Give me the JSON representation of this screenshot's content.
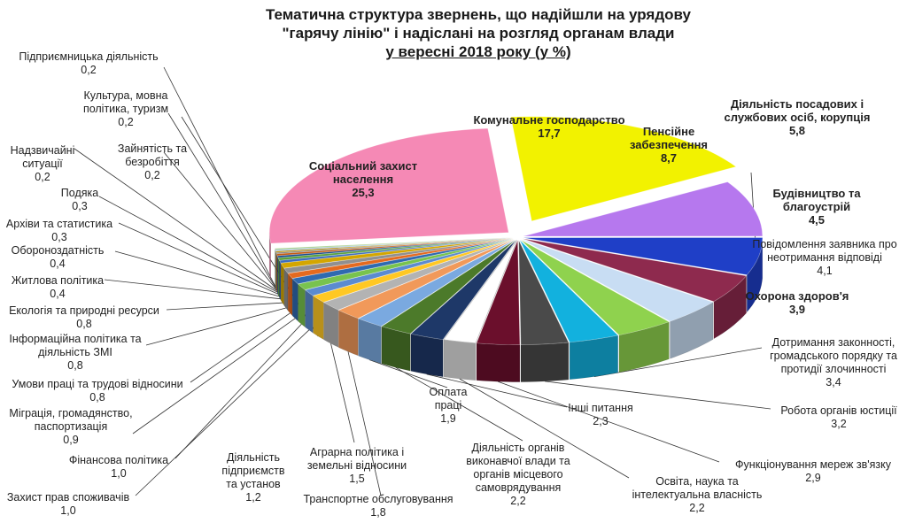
{
  "chart_data": {
    "type": "pie",
    "title_lines": [
      "Тематична структура звернень, що надійшли на урядову",
      "\"гарячу лінію\" і надіслані на розгляд органам влади",
      "у вересні 2018 року (у %)"
    ],
    "slices": [
      {
        "label": "Комунальне господарство",
        "value": 17.7,
        "color": "#f2f200"
      },
      {
        "label": "Пенсійне забезпечення",
        "value": 8.7,
        "color": "#b678ee"
      },
      {
        "label": "Діяльність посадових і службових осіб, корупція",
        "value": 5.8,
        "color": "#1f3fc7"
      },
      {
        "label": "Будівництво та благоустрій",
        "value": 4.5,
        "color": "#8e2a4e"
      },
      {
        "label": "Повідомлення заявника про неотримання відповіді",
        "value": 4.1,
        "color": "#c8ddf3"
      },
      {
        "label": "Охорона здоров'я",
        "value": 3.9,
        "color": "#8fd24e"
      },
      {
        "label": "Дотримання законності, громадського порядку та протидія злочинності",
        "value": 3.4,
        "color": "#12b1de"
      },
      {
        "label": "Робота органів юстиції",
        "value": 3.2,
        "color": "#4a4a4a"
      },
      {
        "label": "Функціонування мереж зв'язку",
        "value": 2.9,
        "color": "#6b0f2c"
      },
      {
        "label": "Освіта, наука та інтелектуальна власність",
        "value": 2.2,
        "color": "#ffffff"
      },
      {
        "label": "Інші питання",
        "value": 2.3,
        "color": "#1e3868"
      },
      {
        "label": "Діяльність органів виконавчої влади та органів місцевого самоврядування",
        "value": 2.2,
        "color": "#4c7a2a"
      },
      {
        "label": "Оплата праці",
        "value": 1.9,
        "color": "#7aa9e0"
      },
      {
        "label": "Транспортне обслуговування",
        "value": 1.8,
        "color": "#f1995a"
      },
      {
        "label": "Аграрна політика і земельні відносини",
        "value": 1.5,
        "color": "#b3b3b3"
      },
      {
        "label": "Діяльність підприємств та установ",
        "value": 1.2,
        "color": "#ffc824"
      },
      {
        "label": "Захист прав споживачів",
        "value": 1.0,
        "color": "#5b8bd0"
      },
      {
        "label": "Фінансова політика",
        "value": 1.0,
        "color": "#78c34e"
      },
      {
        "label": "Міграція, громадянство, паспортизація",
        "value": 0.9,
        "color": "#2f6ab0"
      },
      {
        "label": "Умови праці та трудові відносини",
        "value": 0.8,
        "color": "#e46a1f"
      },
      {
        "label": "Інформаційна політика та діяльність ЗМІ",
        "value": 0.8,
        "color": "#909090"
      },
      {
        "label": "Екологія та природні ресурси",
        "value": 0.8,
        "color": "#d4a600"
      },
      {
        "label": "Житлова політика",
        "value": 0.4,
        "color": "#3d6dbf"
      },
      {
        "label": "Обороноздатність",
        "value": 0.4,
        "color": "#5aa03c"
      },
      {
        "label": "Архіви та статистика",
        "value": 0.3,
        "color": "#1a4d8f"
      },
      {
        "label": "Подяка",
        "value": 0.3,
        "color": "#c55a11"
      },
      {
        "label": "Надзвичайні ситуації",
        "value": 0.2,
        "color": "#7f7f7f"
      },
      {
        "label": "Зайнятість та безробіття",
        "value": 0.2,
        "color": "#bf9000"
      },
      {
        "label": "Культура, мовна політика, туризм",
        "value": 0.2,
        "color": "#9dc3e6"
      },
      {
        "label": "Підприємницька діяльність",
        "value": 0.2,
        "color": "#a9d18e"
      },
      {
        "label": "Соціальний захист населення",
        "value": 25.3,
        "color": "#f589b5"
      }
    ]
  },
  "labels": {
    "komunalne": {
      "name": "Комунальне господарство",
      "value": "17,7"
    },
    "pensiyne": {
      "name1": "Пенсійне",
      "name2": "забезпечення",
      "value": "8,7"
    },
    "posadovi": {
      "name1": "Діяльність посадових і",
      "name2": "службових осіб, корупція",
      "value": "5,8"
    },
    "budivnytstvo": {
      "name1": "Будівництво та",
      "name2": "благоустрій",
      "value": "4,5"
    },
    "povidomlennia": {
      "name1": "Повідомлення заявника про",
      "name2": "неотримання відповіді",
      "value": "4,1"
    },
    "okhorona": {
      "name": "Охорона здоров'я",
      "value": "3,9"
    },
    "zakonnist": {
      "name1": "Дотримання законності,",
      "name2": "громадського порядку та",
      "name3": "протидії злочинності",
      "value": "3,4"
    },
    "yustytsiia": {
      "name": "Робота органів юстиції",
      "value": "3,2"
    },
    "zviazok": {
      "name": "Функціонування  мереж зв'язку",
      "value": "2,9"
    },
    "osvita": {
      "name1": "Освіта, наука та",
      "name2": "інтелектуальна власність",
      "value": "2,2"
    },
    "inshi": {
      "name": "Інші питання",
      "value": "2,3"
    },
    "orhany": {
      "name1": "Діяльність органів",
      "name2": "виконавчої влади та",
      "name3": "органів місцевого",
      "name4": "самоврядування",
      "value": "2,2"
    },
    "oplata": {
      "name1": "Оплата",
      "name2": "праці",
      "value": "1,9"
    },
    "transport": {
      "name": "Транспортне обслуговування",
      "value": "1,8"
    },
    "ahrarna": {
      "name1": "Аграрна політика і",
      "name2": "земельні відносини",
      "value": "1,5"
    },
    "pidpryiemstva": {
      "name1": "Діяльність",
      "name2": "підприємств",
      "name3": "та установ",
      "value": "1,2"
    },
    "spozhyvachi": {
      "name": "Захист прав споживачів",
      "value": "1,0"
    },
    "finansova": {
      "name": "Фінансова політика",
      "value": "1,0"
    },
    "mihratsiia": {
      "name1": "Міграція, громадянство,",
      "name2": "паспортизація",
      "value": "0,9"
    },
    "umovy": {
      "name": "Умови праці та трудові відносини",
      "value": "0,8"
    },
    "informatsiina": {
      "name1": "Інформаційна політика та",
      "name2": "діяльність ЗМІ",
      "value": "0,8"
    },
    "ekolohiia": {
      "name": "Екологія та природні ресурси",
      "value": "0,8"
    },
    "zhytlova": {
      "name": "Житлова політика",
      "value": "0,4"
    },
    "oborona": {
      "name": "Обороноздатність",
      "value": "0,4"
    },
    "arkhivy": {
      "name": "Архіви та статистика",
      "value": "0,3"
    },
    "podiaka": {
      "name": "Подяка",
      "value": "0,3"
    },
    "nadzvychaini": {
      "name1": "Надзвичайні",
      "name2": "ситуації",
      "value": "0,2"
    },
    "zainiatist": {
      "name1": "Зайнятість та",
      "name2": "безробіття",
      "value": "0,2"
    },
    "kultura": {
      "name1": "Культура, мовна",
      "name2": "політика, туризм",
      "value": "0,2"
    },
    "pidpryiemnytska": {
      "name": "Підприємницька діяльність",
      "value": "0,2"
    },
    "sotsialnyi": {
      "name1": "Соціальний захист",
      "name2": "населення",
      "value": "25,3"
    }
  }
}
